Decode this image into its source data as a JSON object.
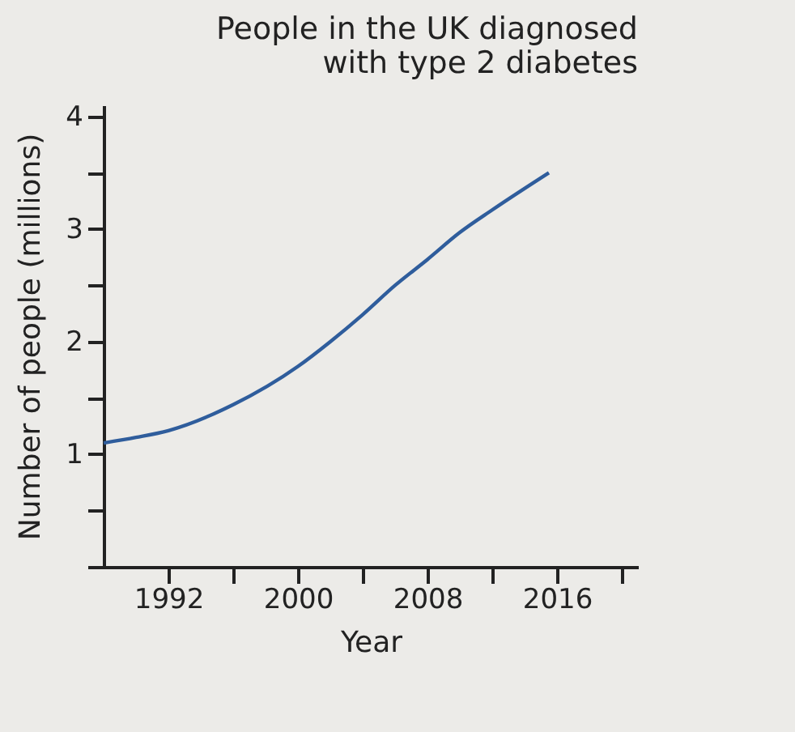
{
  "chart_data": {
    "type": "line",
    "title": "People in the UK diagnosed\nwith type 2 diabetes",
    "xlabel": "Year",
    "ylabel": "Number of people (millions)",
    "x": [
      1988,
      1990,
      1992,
      1996,
      2000,
      2002,
      2004,
      2006,
      2008,
      2010,
      2012,
      2015.5
    ],
    "series": [
      {
        "color": "#2f5d9c",
        "values": [
          1.1,
          1.15,
          1.21,
          1.44,
          1.78,
          2.0,
          2.24,
          2.5,
          2.73,
          2.97,
          3.17,
          3.5
        ]
      }
    ],
    "xlim": [
      1988,
      2021
    ],
    "ylim": [
      0,
      4.1
    ],
    "xticks": [
      1992,
      {
        "value": 1996,
        "label": null
      },
      2000,
      {
        "value": 2004,
        "label": null
      },
      2008,
      {
        "value": 2012,
        "label": null
      },
      2016,
      {
        "value": 2020,
        "label": null
      }
    ],
    "yticks": [
      {
        "value": 0,
        "label": null
      },
      {
        "value": 0.5,
        "label": null
      },
      1,
      {
        "value": 1.5,
        "label": null
      },
      2,
      {
        "value": 2.5,
        "label": null
      },
      3,
      {
        "value": 3.5,
        "label": null
      },
      4
    ],
    "grid": false,
    "legend": false,
    "marker": "none",
    "line_style": "solid"
  }
}
